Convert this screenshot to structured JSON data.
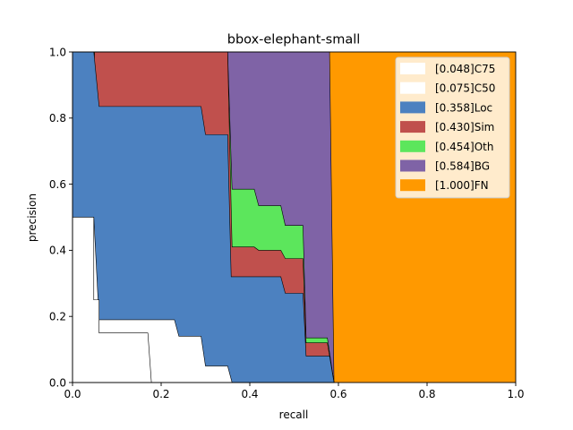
{
  "chart_data": {
    "type": "area",
    "title": "bbox-elephant-small",
    "xlabel": "recall",
    "ylabel": "precision",
    "xlim": [
      0,
      1
    ],
    "ylim": [
      0,
      1
    ],
    "x_ticks": [
      "0.0",
      "0.2",
      "0.4",
      "0.6",
      "0.8",
      "1.0"
    ],
    "y_ticks": [
      "0.0",
      "0.2",
      "0.4",
      "0.6",
      "0.8",
      "1.0"
    ],
    "grid": false,
    "legend_position": "top-right",
    "series": [
      {
        "name": "[0.048]C75",
        "color": "#ffffff",
        "points": [
          [
            0.0,
            0.5
          ],
          [
            0.048,
            0.5
          ],
          [
            0.048,
            0.25
          ],
          [
            0.06,
            0.25
          ],
          [
            0.06,
            0.15
          ],
          [
            0.17,
            0.15
          ],
          [
            0.178,
            0.0
          ]
        ]
      },
      {
        "name": "[0.075]C50",
        "color": "#ffffff",
        "points": [
          [
            0.0,
            0.5
          ],
          [
            0.048,
            0.5
          ],
          [
            0.06,
            0.19
          ],
          [
            0.23,
            0.19
          ],
          [
            0.24,
            0.14
          ],
          [
            0.29,
            0.14
          ],
          [
            0.3,
            0.05
          ],
          [
            0.35,
            0.05
          ],
          [
            0.36,
            0.0
          ]
        ]
      },
      {
        "name": "[0.358]Loc",
        "color": "#4c81c0",
        "points": [
          [
            0.0,
            1.0
          ],
          [
            0.048,
            1.0
          ],
          [
            0.06,
            0.835
          ],
          [
            0.29,
            0.835
          ],
          [
            0.3,
            0.75
          ],
          [
            0.35,
            0.75
          ],
          [
            0.358,
            0.32
          ],
          [
            0.42,
            0.32
          ],
          [
            0.47,
            0.32
          ],
          [
            0.48,
            0.27
          ],
          [
            0.52,
            0.27
          ],
          [
            0.527,
            0.08
          ],
          [
            0.58,
            0.08
          ],
          [
            0.59,
            0.0
          ]
        ]
      },
      {
        "name": "[0.430]Sim",
        "color": "#c0504d",
        "points": [
          [
            0.05,
            1.0
          ],
          [
            0.35,
            1.0
          ],
          [
            0.36,
            0.41
          ],
          [
            0.41,
            0.41
          ],
          [
            0.42,
            0.4
          ],
          [
            0.47,
            0.4
          ],
          [
            0.48,
            0.375
          ],
          [
            0.52,
            0.375
          ],
          [
            0.527,
            0.12
          ],
          [
            0.575,
            0.12
          ],
          [
            0.59,
            0.0
          ]
        ]
      },
      {
        "name": "[0.454]Oth",
        "color": "#5ce65c",
        "points": [
          [
            0.05,
            1.0
          ],
          [
            0.35,
            1.0
          ],
          [
            0.36,
            0.585
          ],
          [
            0.41,
            0.585
          ],
          [
            0.42,
            0.535
          ],
          [
            0.47,
            0.535
          ],
          [
            0.48,
            0.475
          ],
          [
            0.52,
            0.475
          ],
          [
            0.527,
            0.135
          ],
          [
            0.575,
            0.135
          ],
          [
            0.59,
            0.0
          ]
        ]
      },
      {
        "name": "[0.584]BG",
        "color": "#7f63a6",
        "points": [
          [
            0.05,
            1.0
          ],
          [
            0.35,
            1.0
          ],
          [
            0.36,
            1.0
          ],
          [
            0.58,
            1.0
          ],
          [
            0.59,
            0.0
          ]
        ]
      },
      {
        "name": "[1.000]FN",
        "color": "#ff9900",
        "points": [
          [
            0.0,
            1.0
          ],
          [
            1.0,
            1.0
          ],
          [
            1.0,
            0.0
          ],
          [
            0.0,
            0.0
          ]
        ]
      }
    ]
  }
}
